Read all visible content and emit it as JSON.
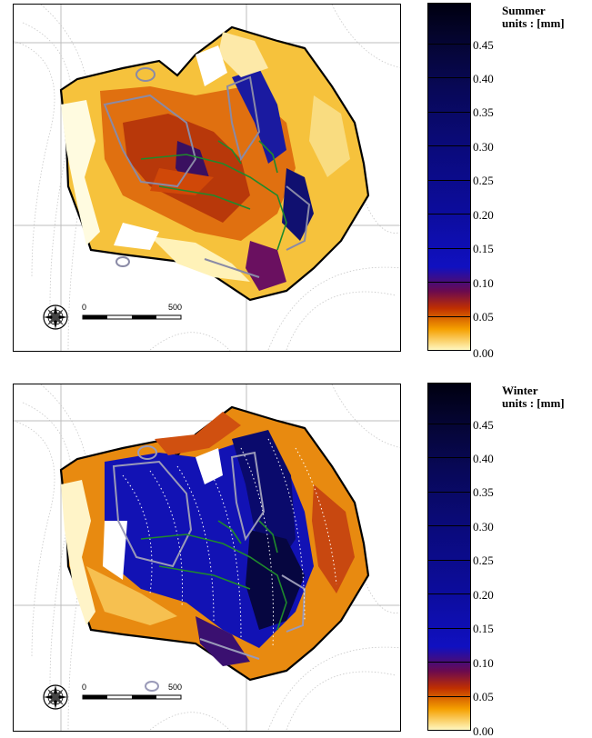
{
  "panels": [
    {
      "season": "Summer",
      "units": "units : [mm]",
      "scale": {
        "start": "0",
        "end": "500"
      }
    },
    {
      "season": "Winter",
      "units": "units : [mm]",
      "scale": {
        "start": "0",
        "end": "500"
      }
    }
  ],
  "colorbar": {
    "ticks": [
      "0.00",
      "0.05",
      "0.10",
      "0.15",
      "0.20",
      "0.25",
      "0.30",
      "0.35",
      "0.40",
      "0.45"
    ],
    "colors": [
      "#fff8c0",
      "#f5a000",
      "#c03000",
      "#6a0a50",
      "#1010c0",
      "#0c0c9c",
      "#0a0a78",
      "#080858",
      "#050535",
      "#000010"
    ]
  }
}
